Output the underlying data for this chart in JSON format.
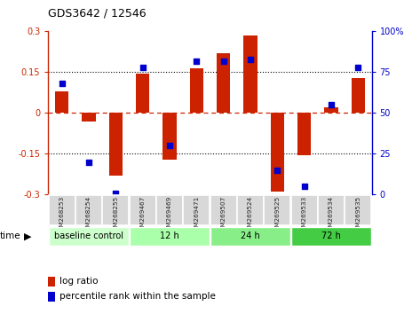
{
  "title": "GDS3642 / 12546",
  "samples": [
    "GSM268253",
    "GSM268254",
    "GSM268255",
    "GSM269467",
    "GSM269469",
    "GSM269471",
    "GSM269507",
    "GSM269524",
    "GSM269525",
    "GSM269533",
    "GSM269534",
    "GSM269535"
  ],
  "log_ratio": [
    0.08,
    -0.03,
    -0.23,
    0.145,
    -0.17,
    0.165,
    0.22,
    0.285,
    -0.29,
    -0.155,
    0.02,
    0.13
  ],
  "percentile_rank": [
    68,
    20,
    1,
    78,
    30,
    82,
    82,
    83,
    15,
    5,
    55,
    78
  ],
  "groups": [
    {
      "label": "baseline control",
      "start": 0,
      "end": 3
    },
    {
      "label": "12 h",
      "start": 3,
      "end": 6
    },
    {
      "label": "24 h",
      "start": 6,
      "end": 9
    },
    {
      "label": "72 h",
      "start": 9,
      "end": 12
    }
  ],
  "group_colors": [
    "#ccffcc",
    "#aaffaa",
    "#88ee88",
    "#44cc44"
  ],
  "ylim_left": [
    -0.3,
    0.3
  ],
  "ylim_right": [
    0,
    100
  ],
  "bar_color": "#cc2200",
  "dot_color": "#0000cc",
  "right_ticks": [
    0,
    25,
    50,
    75,
    100
  ],
  "right_tick_labels": [
    "0",
    "25",
    "50",
    "75",
    "100%"
  ],
  "left_ticks": [
    -0.3,
    -0.15,
    0.0,
    0.15,
    0.3
  ],
  "left_tick_labels": [
    "-0.3",
    "-0.15",
    "0",
    "0.15",
    "0.3"
  ],
  "bar_width": 0.5,
  "dot_size": 22
}
